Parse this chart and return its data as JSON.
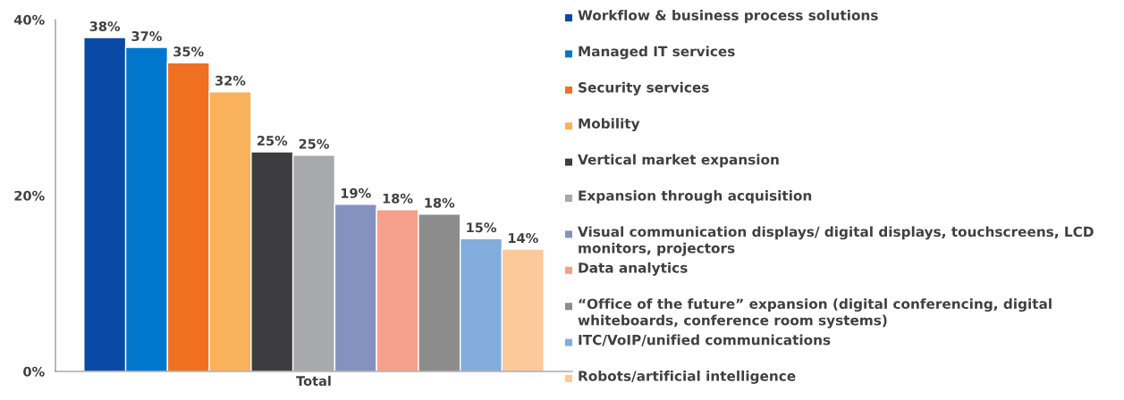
{
  "chart_data": {
    "type": "bar",
    "categories": [
      "Total"
    ],
    "series": [
      {
        "name": "Workflow & business process solutions",
        "color": "#0a4aa6",
        "values": [
          37.97
        ],
        "value_labels": [
          "38%"
        ]
      },
      {
        "name": "Managed IT services",
        "color": "#0077cc",
        "values": [
          36.85
        ],
        "value_labels": [
          "37%"
        ]
      },
      {
        "name": "Security services",
        "color": "#f07022",
        "values": [
          35.1
        ],
        "value_labels": [
          "35%"
        ]
      },
      {
        "name": "Mobility",
        "color": "#f9b25a",
        "values": [
          31.8
        ],
        "value_labels": [
          "32%"
        ]
      },
      {
        "name": "Vertical market expansion",
        "color": "#3d3d3f",
        "values": [
          24.97
        ],
        "value_labels": [
          "25%"
        ]
      },
      {
        "name": "Expansion through acquisition",
        "color": "#a8a9ad",
        "values": [
          24.6
        ],
        "value_labels": [
          "25%"
        ]
      },
      {
        "name": "Visual communication displays/ digital displays, touchscreens, LCD monitors, projectors",
        "color": "#8592c0",
        "values": [
          19.0
        ],
        "value_labels": [
          "19%"
        ]
      },
      {
        "name": "Data analytics",
        "color": "#f4a08a",
        "values": [
          18.4
        ],
        "value_labels": [
          "18%"
        ]
      },
      {
        "name": "“Office of the future” expansion (digital conferencing, digital whiteboards, conference room systems)",
        "color": "#8c8c8c",
        "values": [
          17.9
        ],
        "value_labels": [
          "18%"
        ]
      },
      {
        "name": "ITC/VoIP/unified communications",
        "color": "#82acdc",
        "values": [
          15.1
        ],
        "value_labels": [
          "15%"
        ]
      },
      {
        "name": "Robots/artificial intelligence",
        "color": "#fdc89a",
        "values": [
          13.9
        ],
        "value_labels": [
          "14%"
        ]
      }
    ],
    "ylim": [
      0,
      40
    ],
    "yticks": [
      {
        "value": 0,
        "label": "0%"
      },
      {
        "value": 20,
        "label": "20%"
      },
      {
        "value": 40,
        "label": "40%"
      }
    ],
    "legend": "right",
    "grid": false
  }
}
